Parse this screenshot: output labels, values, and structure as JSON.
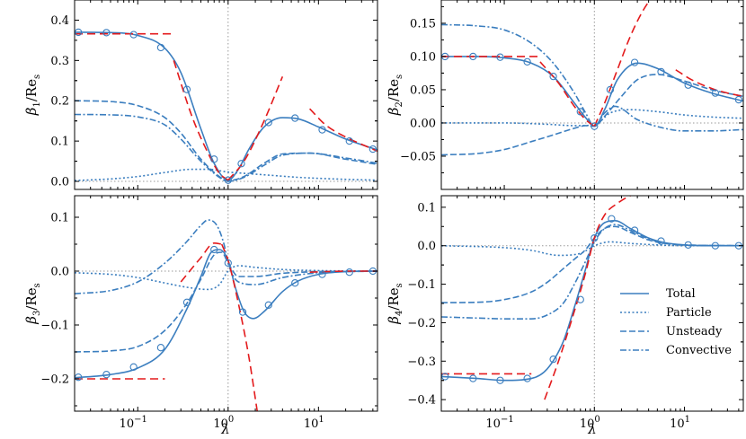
{
  "colors": {
    "blue": "#3b7ebf",
    "red": "#e31a1c",
    "ref": "#999999"
  },
  "legend": [
    "Total",
    "Particle",
    "Unsteady",
    "Convective"
  ],
  "chart_data": [
    {
      "type": "line",
      "id": "p1",
      "ylabel": "β1/Res",
      "ylabel_main": "β",
      "ylabel_sub": "1",
      "ylabel_den": "/Re",
      "ylabel_densub": "s",
      "xlabel": "",
      "xscale": "log",
      "xlim": [
        0.02,
        45
      ],
      "ylim": [
        -0.02,
        0.45
      ],
      "yticks": [
        0,
        0.1,
        0.2,
        0.3,
        0.4
      ],
      "yticklabels": [
        "0.0",
        "0.1",
        "0.2",
        "0.3",
        "0.4"
      ],
      "xticks": [],
      "xticklabels": [],
      "series": [
        {
          "name": "Total",
          "style": "solid",
          "x": [
            0.02,
            0.05,
            0.1,
            0.2,
            0.3,
            0.5,
            0.7,
            1,
            1.3,
            1.7,
            2.5,
            4,
            6,
            10,
            20,
            45
          ],
          "y": [
            0.37,
            0.369,
            0.362,
            0.33,
            0.27,
            0.13,
            0.045,
            0.003,
            0.03,
            0.08,
            0.135,
            0.158,
            0.155,
            0.135,
            0.105,
            0.078
          ]
        },
        {
          "name": "Particle",
          "style": "dotted",
          "x": [
            0.02,
            0.05,
            0.1,
            0.2,
            0.4,
            0.6,
            1,
            1.5,
            3,
            6,
            20,
            45
          ],
          "y": [
            0.002,
            0.006,
            0.012,
            0.022,
            0.03,
            0.03,
            0.023,
            0.02,
            0.015,
            0.01,
            0.005,
            0.003
          ]
        },
        {
          "name": "Unsteady",
          "style": "dashed",
          "x": [
            0.02,
            0.05,
            0.1,
            0.2,
            0.3,
            0.5,
            0.8,
            1,
            1.5,
            2.5,
            4,
            8,
            20,
            45
          ],
          "y": [
            0.2,
            0.198,
            0.188,
            0.158,
            0.12,
            0.055,
            0.012,
            0.002,
            0.012,
            0.045,
            0.068,
            0.07,
            0.055,
            0.042
          ]
        },
        {
          "name": "Convective",
          "style": "dashdot",
          "x": [
            0.02,
            0.05,
            0.1,
            0.2,
            0.3,
            0.5,
            0.8,
            1,
            1.5,
            2.5,
            4,
            8,
            20,
            45
          ],
          "y": [
            0.166,
            0.165,
            0.16,
            0.14,
            0.105,
            0.05,
            0.01,
            0,
            0.01,
            0.04,
            0.065,
            0.07,
            0.058,
            0.045
          ]
        }
      ],
      "markers": {
        "x": [
          0.022,
          0.045,
          0.09,
          0.18,
          0.35,
          0.7,
          1.0,
          1.4,
          2.8,
          5.5,
          11,
          22,
          40
        ],
        "y": [
          0.37,
          0.369,
          0.364,
          0.332,
          0.228,
          0.055,
          0.003,
          0.044,
          0.146,
          0.157,
          0.128,
          0.1,
          0.08
        ]
      },
      "asymptotes": [
        {
          "x": [
            0.02,
            0.25
          ],
          "y": [
            0.366,
            0.366
          ]
        },
        {
          "x": [
            0.25,
            0.4,
            0.6,
            0.8,
            1.0
          ],
          "y": [
            0.3,
            0.16,
            0.07,
            0.02,
            0.003
          ]
        },
        {
          "x": [
            1.0,
            1.5,
            2.5,
            4.0
          ],
          "y": [
            0.003,
            0.05,
            0.15,
            0.26
          ]
        },
        {
          "x": [
            8,
            12,
            20,
            30,
            45
          ],
          "y": [
            0.18,
            0.14,
            0.11,
            0.092,
            0.075
          ]
        }
      ]
    },
    {
      "type": "line",
      "id": "p2",
      "ylabel": "β2/Res",
      "ylabel_main": "β",
      "ylabel_sub": "2",
      "ylabel_den": "/Re",
      "ylabel_densub": "s",
      "xlabel": "",
      "xscale": "log",
      "xlim": [
        0.02,
        45
      ],
      "ylim": [
        -0.1,
        0.185
      ],
      "yticks": [
        -0.05,
        0,
        0.05,
        0.1,
        0.15
      ],
      "yticklabels": [
        "−0.05",
        "0.00",
        "0.05",
        "0.10",
        "0.15"
      ],
      "xticks": [],
      "xticklabels": [],
      "series": [
        {
          "name": "Total",
          "style": "solid",
          "x": [
            0.02,
            0.05,
            0.1,
            0.2,
            0.35,
            0.6,
            0.8,
            1,
            1.3,
            1.8,
            3,
            5,
            10,
            20,
            45
          ],
          "y": [
            0.1,
            0.1,
            0.098,
            0.09,
            0.07,
            0.03,
            0.008,
            -0.005,
            0.02,
            0.065,
            0.09,
            0.082,
            0.06,
            0.045,
            0.033
          ]
        },
        {
          "name": "Particle",
          "style": "dotted",
          "x": [
            0.02,
            0.1,
            0.3,
            0.6,
            1,
            1.5,
            2.5,
            5,
            10,
            20,
            45
          ],
          "y": [
            0,
            0,
            -0.002,
            -0.004,
            -0.003,
            0.015,
            0.02,
            0.017,
            0.012,
            0.009,
            0.007
          ]
        },
        {
          "name": "Unsteady",
          "style": "dashed",
          "x": [
            0.02,
            0.05,
            0.1,
            0.2,
            0.35,
            0.6,
            0.8,
            1,
            1.3,
            2,
            3,
            5,
            10,
            20,
            45
          ],
          "y": [
            -0.048,
            -0.046,
            -0.04,
            -0.028,
            -0.018,
            -0.008,
            -0.004,
            -0.005,
            0.01,
            0.04,
            0.065,
            0.073,
            0.063,
            0.05,
            0.04
          ]
        },
        {
          "name": "Convective",
          "style": "dashdot",
          "x": [
            0.02,
            0.05,
            0.1,
            0.2,
            0.35,
            0.6,
            0.8,
            1,
            1.3,
            1.7,
            3,
            6,
            10,
            20,
            45
          ],
          "y": [
            0.148,
            0.146,
            0.14,
            0.12,
            0.09,
            0.045,
            0.015,
            -0.005,
            0.015,
            0.025,
            0.005,
            -0.008,
            -0.012,
            -0.012,
            -0.01
          ]
        }
      ],
      "markers": {
        "x": [
          0.022,
          0.045,
          0.09,
          0.18,
          0.35,
          0.7,
          1.0,
          1.5,
          2.8,
          5.5,
          11,
          22,
          40
        ],
        "y": [
          0.1,
          0.1,
          0.099,
          0.092,
          0.07,
          0.017,
          -0.005,
          0.05,
          0.091,
          0.077,
          0.057,
          0.045,
          0.035
        ]
      },
      "asymptotes": [
        {
          "x": [
            0.02,
            0.25
          ],
          "y": [
            0.1,
            0.1
          ]
        },
        {
          "x": [
            0.25,
            0.4,
            0.6,
            0.8,
            1.0
          ],
          "y": [
            0.092,
            0.06,
            0.025,
            0.005,
            -0.005
          ]
        },
        {
          "x": [
            1.0,
            1.3,
            1.8,
            2.5,
            3.5,
            5
          ],
          "y": [
            -0.005,
            0.03,
            0.08,
            0.13,
            0.17,
            0.2
          ]
        },
        {
          "x": [
            8,
            12,
            20,
            30,
            45
          ],
          "y": [
            0.08,
            0.065,
            0.052,
            0.045,
            0.04
          ]
        }
      ]
    },
    {
      "type": "line",
      "id": "p3",
      "ylabel": "β3/Res",
      "ylabel_main": "β",
      "ylabel_sub": "3",
      "ylabel_den": "/Re",
      "ylabel_densub": "s",
      "xlabel": "λ",
      "xscale": "log",
      "xlim": [
        0.02,
        45
      ],
      "ylim": [
        -0.26,
        0.14
      ],
      "yticks": [
        -0.2,
        -0.1,
        0,
        0.1
      ],
      "yticklabels": [
        "−0.2",
        "−0.1",
        "0.0",
        "0.1"
      ],
      "xticks": [
        0.1,
        1,
        10
      ],
      "xticklabels": [
        "10−1",
        "100",
        "101"
      ],
      "series": [
        {
          "name": "Total",
          "style": "solid",
          "x": [
            0.02,
            0.05,
            0.1,
            0.2,
            0.35,
            0.5,
            0.65,
            0.8,
            1,
            1.2,
            1.5,
            1.9,
            2.5,
            4,
            6,
            10,
            20,
            45
          ],
          "y": [
            -0.198,
            -0.192,
            -0.18,
            -0.145,
            -0.07,
            -0.01,
            0.035,
            0.04,
            0.02,
            -0.03,
            -0.075,
            -0.088,
            -0.075,
            -0.038,
            -0.018,
            -0.006,
            -0.001,
            0
          ]
        },
        {
          "name": "Particle",
          "style": "dotted",
          "x": [
            0.02,
            0.05,
            0.1,
            0.2,
            0.35,
            0.6,
            0.8,
            1,
            1.3,
            2,
            4,
            10,
            45
          ],
          "y": [
            -0.003,
            -0.006,
            -0.012,
            -0.022,
            -0.03,
            -0.034,
            -0.025,
            0,
            0.01,
            0.007,
            0.003,
            0.001,
            0
          ]
        },
        {
          "name": "Unsteady",
          "style": "dashed",
          "x": [
            0.02,
            0.05,
            0.1,
            0.2,
            0.35,
            0.5,
            0.7,
            0.85,
            1,
            1.3,
            2,
            4,
            10,
            45
          ],
          "y": [
            -0.15,
            -0.148,
            -0.14,
            -0.11,
            -0.06,
            -0.015,
            0.03,
            0.035,
            0.015,
            -0.01,
            -0.01,
            -0.004,
            -0.001,
            0
          ]
        },
        {
          "name": "Convective",
          "style": "dashdot",
          "x": [
            0.02,
            0.05,
            0.1,
            0.2,
            0.35,
            0.5,
            0.6,
            0.75,
            0.9,
            1,
            1.3,
            2,
            4,
            10,
            45
          ],
          "y": [
            -0.042,
            -0.036,
            -0.02,
            0.015,
            0.055,
            0.085,
            0.095,
            0.085,
            0.05,
            0.015,
            -0.02,
            -0.025,
            -0.012,
            -0.003,
            0
          ]
        }
      ],
      "markers": {
        "x": [
          0.022,
          0.045,
          0.09,
          0.18,
          0.35,
          0.7,
          1.0,
          1.45,
          2.8,
          5.5,
          11,
          22,
          40
        ],
        "y": [
          -0.197,
          -0.192,
          -0.178,
          -0.142,
          -0.058,
          0.04,
          0.015,
          -0.076,
          -0.063,
          -0.022,
          -0.006,
          -0.002,
          0
        ]
      },
      "asymptotes": [
        {
          "x": [
            0.02,
            0.2
          ],
          "y": [
            -0.2,
            -0.2
          ]
        },
        {
          "x": [
            0.3,
            0.5,
            0.7,
            0.85
          ],
          "y": [
            -0.02,
            0.025,
            0.052,
            0.05
          ]
        },
        {
          "x": [
            0.85,
            1.0,
            1.3,
            1.7,
            2.1
          ],
          "y": [
            0.05,
            0.02,
            -0.06,
            -0.16,
            -0.26
          ]
        },
        {
          "x": [
            8,
            12,
            20,
            45
          ],
          "y": [
            -0.002,
            -0.001,
            0,
            0
          ]
        }
      ]
    },
    {
      "type": "line",
      "id": "p4",
      "ylabel": "β4/Res",
      "ylabel_main": "β",
      "ylabel_sub": "4",
      "ylabel_den": "/Re",
      "ylabel_densub": "s",
      "xlabel": "λ",
      "xscale": "log",
      "xlim": [
        0.02,
        45
      ],
      "ylim": [
        -0.43,
        0.13
      ],
      "yticks": [
        -0.4,
        -0.3,
        -0.2,
        -0.1,
        0,
        0.1
      ],
      "yticklabels": [
        "−0.4",
        "−0.3",
        "−0.2",
        "−0.1",
        "0.0",
        "0.1"
      ],
      "xticks": [
        0.1,
        1,
        10
      ],
      "xticklabels": [
        "10−1",
        "100",
        "101"
      ],
      "series": [
        {
          "name": "Total",
          "style": "solid",
          "x": [
            0.02,
            0.05,
            0.1,
            0.2,
            0.3,
            0.45,
            0.6,
            0.8,
            1,
            1.3,
            1.7,
            2.5,
            4,
            6,
            10,
            20,
            45
          ],
          "y": [
            -0.34,
            -0.345,
            -0.35,
            -0.345,
            -0.32,
            -0.25,
            -0.16,
            -0.06,
            0.02,
            0.06,
            0.065,
            0.045,
            0.02,
            0.008,
            0.002,
            0,
            0
          ]
        },
        {
          "name": "Particle",
          "style": "dotted",
          "x": [
            0.02,
            0.1,
            0.2,
            0.4,
            0.7,
            1,
            1.5,
            2.5,
            5,
            10,
            45
          ],
          "y": [
            0,
            -0.005,
            -0.012,
            -0.025,
            -0.02,
            0,
            0.01,
            0.006,
            0.002,
            0,
            0
          ]
        },
        {
          "name": "Unsteady",
          "style": "dashed",
          "x": [
            0.02,
            0.05,
            0.1,
            0.2,
            0.3,
            0.45,
            0.6,
            0.8,
            1,
            1.3,
            1.7,
            2.5,
            4,
            6,
            10,
            45
          ],
          "y": [
            -0.148,
            -0.147,
            -0.14,
            -0.12,
            -0.095,
            -0.06,
            -0.035,
            -0.01,
            0.02,
            0.045,
            0.05,
            0.035,
            0.015,
            0.006,
            0.002,
            0
          ]
        },
        {
          "name": "Convective",
          "style": "dashdot",
          "x": [
            0.02,
            0.05,
            0.1,
            0.2,
            0.3,
            0.45,
            0.6,
            0.8,
            1,
            1.3,
            1.7,
            2.5,
            4,
            6,
            10,
            45
          ],
          "y": [
            -0.185,
            -0.188,
            -0.19,
            -0.19,
            -0.18,
            -0.15,
            -0.1,
            -0.04,
            0.01,
            0.045,
            0.055,
            0.04,
            0.018,
            0.007,
            0.002,
            0
          ]
        }
      ],
      "markers": {
        "x": [
          0.022,
          0.045,
          0.09,
          0.18,
          0.35,
          0.7,
          1.0,
          1.55,
          2.8,
          5.5,
          11,
          22,
          40
        ],
        "y": [
          -0.34,
          -0.345,
          -0.35,
          -0.345,
          -0.295,
          -0.14,
          0.02,
          0.07,
          0.04,
          0.012,
          0.002,
          0,
          0
        ]
      },
      "asymptotes": [
        {
          "x": [
            0.02,
            0.2
          ],
          "y": [
            -0.333,
            -0.333
          ]
        },
        {
          "x": [
            0.28,
            0.4,
            0.6,
            0.8,
            1.0,
            1.3,
            1.8,
            2.5,
            3.5
          ],
          "y": [
            -0.4,
            -0.3,
            -0.17,
            -0.07,
            0.02,
            0.08,
            0.11,
            0.13,
            0.14
          ]
        }
      ]
    }
  ]
}
